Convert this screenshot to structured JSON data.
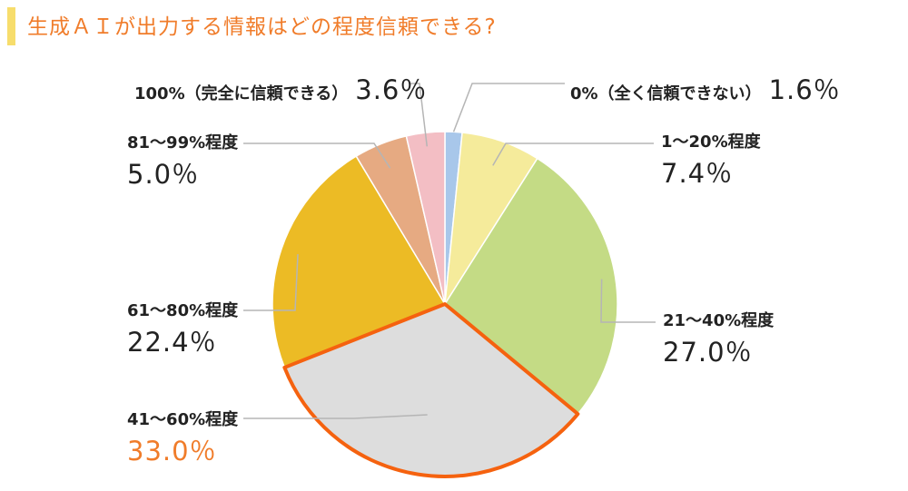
{
  "title": "生成ＡＩが出力する情報はどの程度信頼できる?",
  "colors": {
    "title": "#f07c2a",
    "title_bar": "#f7dd6c",
    "highlight_outline": "#f5620f",
    "leader": "#b5b5b5",
    "text": "#222222",
    "highlight_text": "#f07c2a"
  },
  "chart_data": {
    "type": "pie",
    "title": "生成ＡＩが出力する情報はどの程度信頼できる?",
    "unit": "%",
    "start": "12 o'clock",
    "direction": "clockwise",
    "highlighted": "41〜60%程度",
    "slices": [
      {
        "label": "0%（全く信頼できない）",
        "value": 1.6,
        "value_label": "1.6％",
        "color": "#a8c7ea"
      },
      {
        "label": "1〜20%程度",
        "value": 7.4,
        "value_label": "7.4％",
        "color": "#f5eb9b"
      },
      {
        "label": "21〜40%程度",
        "value": 27.0,
        "value_label": "27.0％",
        "color": "#c4db85"
      },
      {
        "label": "41〜60%程度",
        "value": 33.0,
        "value_label": "33.0％",
        "color": "#dddddd"
      },
      {
        "label": "61〜80%程度",
        "value": 22.4,
        "value_label": "22.4％",
        "color": "#ecbb25"
      },
      {
        "label": "81〜99%程度",
        "value": 5.0,
        "value_label": "5.0％",
        "color": "#e6aa82"
      },
      {
        "label": "100%（完全に信頼できる）",
        "value": 3.6,
        "value_label": "3.6％",
        "color": "#f3bec4"
      }
    ]
  }
}
